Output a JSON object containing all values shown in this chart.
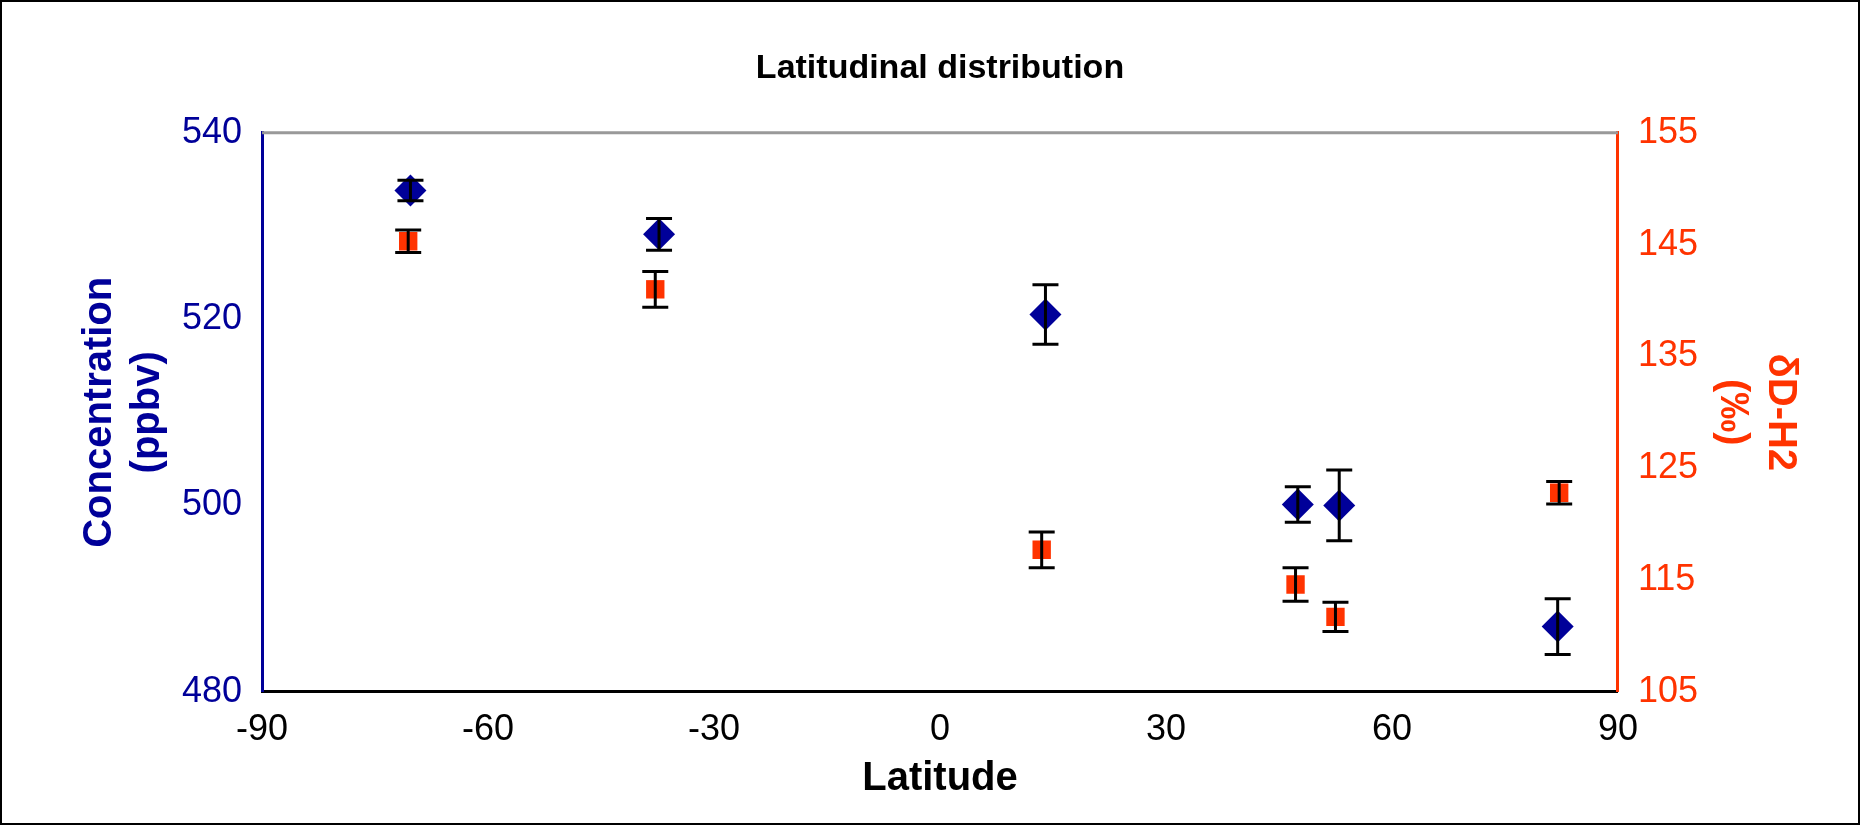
{
  "chart_data": {
    "type": "scatter",
    "title": "Latitudinal distribution",
    "xlabel": "Latitude",
    "ylabel": "Concentration (ppbv)",
    "y2label": "δD-H2 (‰)",
    "xlim": [
      -90,
      90
    ],
    "xticks": [
      -90,
      -60,
      -30,
      0,
      30,
      60,
      90
    ],
    "ylim": [
      480,
      540
    ],
    "yticks": [
      480,
      500,
      520,
      540
    ],
    "y2lim": [
      105,
      155
    ],
    "y2ticks": [
      105,
      115,
      125,
      135,
      145,
      155
    ],
    "grid": false,
    "legend": false,
    "series": [
      {
        "color": "#000099",
        "marker": "diamond",
        "x": [
          -70.3,
          -37.3,
          14,
          47.5,
          53,
          82
        ],
        "values": [
          533.8,
          529.1,
          520.5,
          500.1,
          500,
          487
        ],
        "errors": [
          1.1,
          1.7,
          3.2,
          1.9,
          3.8,
          3
        ]
      },
      {
        "color": "#ff3300",
        "marker": "square",
        "axis": "y2",
        "x": [
          -70.6,
          -37.8,
          13.5,
          47.2,
          52.5,
          82.2
        ],
        "values": [
          145.3,
          141,
          117.7,
          114.6,
          111.7,
          122.8
        ],
        "errors": [
          1,
          1.6,
          1.6,
          1.5,
          1.3,
          1
        ]
      }
    ]
  }
}
